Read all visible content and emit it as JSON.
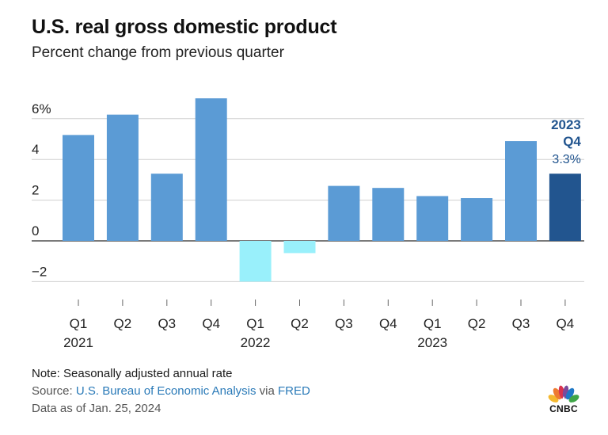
{
  "title": "U.S. real gross domestic product",
  "subtitle": "Percent change from previous quarter",
  "chart_data": {
    "type": "bar",
    "categories": [
      "Q1 2021",
      "Q2 2021",
      "Q3 2021",
      "Q4 2021",
      "Q1 2022",
      "Q2 2022",
      "Q3 2022",
      "Q4 2022",
      "Q1 2023",
      "Q2 2023",
      "Q3 2023",
      "Q4 2023"
    ],
    "quarter_labels": [
      "Q1",
      "Q2",
      "Q3",
      "Q4",
      "Q1",
      "Q2",
      "Q3",
      "Q4",
      "Q1",
      "Q2",
      "Q3",
      "Q4"
    ],
    "year_labels": [
      "2021",
      "2022",
      "2023"
    ],
    "values": [
      5.2,
      6.2,
      3.3,
      7.0,
      -2.0,
      -0.6,
      2.7,
      2.6,
      2.2,
      2.1,
      4.9,
      3.3
    ],
    "y_ticks": [
      {
        "value": 6,
        "label": "6%"
      },
      {
        "value": 4,
        "label": "4"
      },
      {
        "value": 2,
        "label": "2"
      },
      {
        "value": 0,
        "label": "0"
      },
      {
        "value": -2,
        "label": "−2"
      }
    ],
    "ylim": [
      -2,
      7
    ],
    "grid": true,
    "colors": {
      "positive": "#5b9bd5",
      "negative": "#99f0fb",
      "highlight": "#22558f"
    },
    "highlight_index": 11,
    "annotation": {
      "line1": "2023",
      "line2": "Q4",
      "value": "3.3%"
    }
  },
  "footer": {
    "note": "Note: Seasonally adjusted annual rate",
    "source_prefix": "Source: ",
    "source_link": "U.S. Bureau of Economic Analysis",
    "source_mid": " via ",
    "source_link2": "FRED",
    "as_of": "Data as of Jan. 25, 2024"
  },
  "logo": {
    "text": "CNBC",
    "icon": "nbc-peacock-icon"
  }
}
